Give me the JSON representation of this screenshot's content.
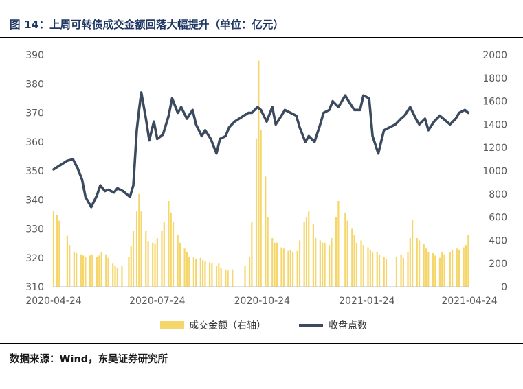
{
  "figure": {
    "title": "图 14：上周可转债成交金额回落大幅提升（单位：亿元）",
    "source": "数据来源：Wind，东吴证券研究所"
  },
  "colors": {
    "bar": "#F5D66B",
    "line": "#3B4A5E",
    "title": "#1F3864",
    "axis": "#595959"
  },
  "chart_data": {
    "type": "bar+line",
    "x_ticks": [
      "2020-04-24",
      "2020-07-24",
      "2020-10-24",
      "2021-01-24",
      "2021-04-24"
    ],
    "y_left": {
      "min": 310,
      "max": 390,
      "ticks": [
        390,
        380,
        370,
        360,
        350,
        340,
        330,
        320,
        310
      ]
    },
    "y_right": {
      "min": 0,
      "max": 2000,
      "ticks": [
        2000,
        1800,
        1600,
        1400,
        1200,
        1000,
        800,
        600,
        400,
        200,
        0
      ]
    },
    "legend": {
      "position": "bottom"
    },
    "series": [
      {
        "name": "成交金额（右轴）",
        "type": "bar",
        "axis": "right",
        "x": [
          "2020-04-24",
          "2020-04-27",
          "2020-04-29",
          "2020-05-06",
          "2020-05-08",
          "2020-05-12",
          "2020-05-14",
          "2020-05-18",
          "2020-05-20",
          "2020-05-22",
          "2020-05-26",
          "2020-05-28",
          "2020-06-01",
          "2020-06-03",
          "2020-06-05",
          "2020-06-09",
          "2020-06-11",
          "2020-06-15",
          "2020-06-17",
          "2020-06-19",
          "2020-06-23",
          "2020-06-29",
          "2020-07-01",
          "2020-07-03",
          "2020-07-06",
          "2020-07-08",
          "2020-07-10",
          "2020-07-14",
          "2020-07-16",
          "2020-07-20",
          "2020-07-22",
          "2020-07-24",
          "2020-07-28",
          "2020-07-30",
          "2020-08-03",
          "2020-08-05",
          "2020-08-07",
          "2020-08-11",
          "2020-08-13",
          "2020-08-17",
          "2020-08-19",
          "2020-08-21",
          "2020-08-25",
          "2020-08-27",
          "2020-08-31",
          "2020-09-02",
          "2020-09-04",
          "2020-09-08",
          "2020-09-10",
          "2020-09-14",
          "2020-09-16",
          "2020-09-18",
          "2020-09-22",
          "2020-09-24",
          "2020-09-28",
          "2020-10-09",
          "2020-10-13",
          "2020-10-15",
          "2020-10-19",
          "2020-10-21",
          "2020-10-23",
          "2020-10-27",
          "2020-10-29",
          "2020-11-02",
          "2020-11-04",
          "2020-11-06",
          "2020-11-10",
          "2020-11-12",
          "2020-11-16",
          "2020-11-18",
          "2020-11-20",
          "2020-11-24",
          "2020-11-26",
          "2020-11-30",
          "2020-12-02",
          "2020-12-04",
          "2020-12-08",
          "2020-12-10",
          "2020-12-14",
          "2020-12-16",
          "2020-12-18",
          "2020-12-22",
          "2020-12-24",
          "2020-12-28",
          "2020-12-30",
          "2021-01-05",
          "2021-01-07",
          "2021-01-11",
          "2021-01-13",
          "2021-01-15",
          "2021-01-19",
          "2021-01-21",
          "2021-01-25",
          "2021-01-27",
          "2021-01-29",
          "2021-02-02",
          "2021-02-04",
          "2021-02-08",
          "2021-02-10",
          "2021-02-19",
          "2021-02-23",
          "2021-02-25",
          "2021-03-01",
          "2021-03-03",
          "2021-03-05",
          "2021-03-09",
          "2021-03-11",
          "2021-03-15",
          "2021-03-17",
          "2021-03-19",
          "2021-03-23",
          "2021-03-25",
          "2021-03-29",
          "2021-03-31",
          "2021-04-02",
          "2021-04-07",
          "2021-04-09",
          "2021-04-13",
          "2021-04-15",
          "2021-04-19",
          "2021-04-21",
          "2021-04-23"
        ],
        "values": [
          650,
          620,
          570,
          440,
          360,
          300,
          290,
          280,
          270,
          260,
          270,
          280,
          260,
          270,
          300,
          280,
          250,
          200,
          180,
          160,
          180,
          260,
          350,
          480,
          650,
          800,
          650,
          480,
          390,
          380,
          370,
          420,
          480,
          560,
          740,
          640,
          560,
          450,
          380,
          330,
          300,
          260,
          260,
          240,
          250,
          230,
          220,
          210,
          200,
          180,
          200,
          160,
          150,
          140,
          150,
          180,
          260,
          560,
          1280,
          1950,
          1350,
          950,
          600,
          420,
          380,
          380,
          340,
          330,
          310,
          320,
          300,
          310,
          400,
          560,
          600,
          650,
          540,
          420,
          400,
          380,
          380,
          360,
          420,
          600,
          740,
          640,
          570,
          500,
          450,
          380,
          400,
          360,
          340,
          320,
          300,
          300,
          280,
          260,
          240,
          260,
          280,
          250,
          300,
          420,
          580,
          420,
          400,
          370,
          330,
          300,
          290,
          270,
          250,
          300,
          280,
          300,
          320,
          330,
          320,
          340,
          360,
          450
        ]
      },
      {
        "name": "收盘点数",
        "type": "line",
        "axis": "left",
        "x": [
          "2020-04-24",
          "2020-04-28",
          "2020-05-06",
          "2020-05-11",
          "2020-05-15",
          "2020-05-19",
          "2020-05-22",
          "2020-05-27",
          "2020-06-01",
          "2020-06-04",
          "2020-06-08",
          "2020-06-11",
          "2020-06-16",
          "2020-06-19",
          "2020-06-24",
          "2020-06-30",
          "2020-07-03",
          "2020-07-06",
          "2020-07-08",
          "2020-07-10",
          "2020-07-14",
          "2020-07-17",
          "2020-07-21",
          "2020-07-24",
          "2020-07-29",
          "2020-08-03",
          "2020-08-06",
          "2020-08-11",
          "2020-08-14",
          "2020-08-19",
          "2020-08-24",
          "2020-08-27",
          "2020-09-01",
          "2020-09-04",
          "2020-09-09",
          "2020-09-14",
          "2020-09-17",
          "2020-09-22",
          "2020-09-25",
          "2020-09-30",
          "2020-10-12",
          "2020-10-15",
          "2020-10-20",
          "2020-10-23",
          "2020-10-28",
          "2020-11-02",
          "2020-11-05",
          "2020-11-10",
          "2020-11-13",
          "2020-11-18",
          "2020-11-23",
          "2020-11-26",
          "2020-12-01",
          "2020-12-04",
          "2020-12-09",
          "2020-12-14",
          "2020-12-17",
          "2020-12-22",
          "2020-12-25",
          "2020-12-30",
          "2021-01-05",
          "2021-01-08",
          "2021-01-13",
          "2021-01-18",
          "2021-01-21",
          "2021-01-26",
          "2021-01-29",
          "2021-02-03",
          "2021-02-08",
          "2021-02-18",
          "2021-02-23",
          "2021-02-26",
          "2021-03-03",
          "2021-03-08",
          "2021-03-11",
          "2021-03-16",
          "2021-03-19",
          "2021-03-24",
          "2021-03-29",
          "2021-04-01",
          "2021-04-07",
          "2021-04-12",
          "2021-04-15",
          "2021-04-20",
          "2021-04-23"
        ],
        "values": [
          350.5,
          351.5,
          353.5,
          354,
          351,
          347,
          341,
          337.5,
          341.5,
          345,
          343,
          343.5,
          342.5,
          344,
          343,
          341,
          345,
          364,
          371,
          377,
          368,
          360.5,
          367,
          361,
          362.5,
          369,
          375,
          370,
          372,
          368,
          371,
          366,
          362,
          364,
          361,
          356,
          361,
          362,
          365,
          367,
          370,
          370,
          372,
          371,
          367,
          372,
          366,
          369,
          371,
          370,
          369,
          365,
          360,
          362,
          360,
          366,
          370,
          371,
          374,
          372,
          376,
          374,
          371,
          371,
          376,
          375,
          362,
          356,
          364,
          366,
          368,
          369,
          372,
          368,
          366,
          368,
          364,
          367,
          369,
          368,
          366,
          368,
          370,
          371,
          370
        ]
      }
    ]
  }
}
